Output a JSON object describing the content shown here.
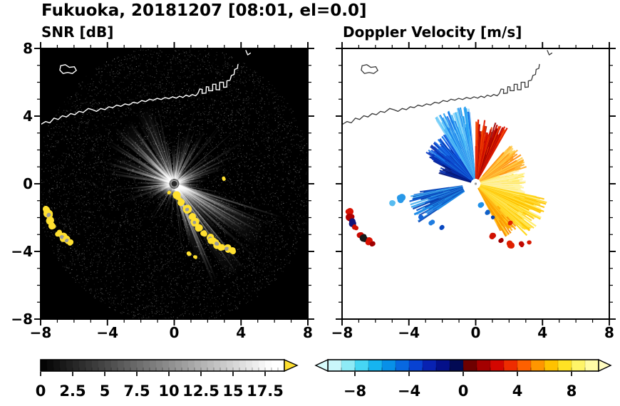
{
  "chart_data": {
    "type": "heatmap",
    "title": "Fukuoka, 20181207 [08:01, el=0.0]",
    "axes": {
      "xlim": [
        -8,
        8
      ],
      "ylim": [
        -8,
        8
      ],
      "major_ticks": [
        -8,
        -4,
        0,
        4,
        8
      ],
      "x_tick_labels": [
        "−8",
        "−4",
        "0",
        "4",
        "8"
      ],
      "y_tick_values": [
        8,
        4,
        0,
        -4,
        -8
      ],
      "y_tick_labels": [
        "8",
        "4",
        "0",
        "−4",
        "−8"
      ],
      "minor_step": 1
    },
    "panels": [
      {
        "subtitle": "SNR [dB]",
        "background": "#000000",
        "colorbar": {
          "min": 0,
          "max": 19,
          "step": 0.5,
          "style": "grayscale",
          "label_values": [
            0,
            2.5,
            5,
            7.5,
            10,
            12.5,
            15,
            17.5
          ],
          "labels": [
            "0",
            "2.5",
            "5",
            "7.5",
            "10",
            "12.5",
            "15",
            "17.5"
          ],
          "over_arrow_color": "#ffe030"
        },
        "speckle": {
          "seed": 11,
          "count": 7000,
          "max_radius": 8.3,
          "gray_min": 14,
          "gray_max": 78
        },
        "beams": {
          "seed": 23,
          "random_count": 130,
          "fans": [
            {
              "a0": -75,
              "a1": -14,
              "n": 28,
              "len_min": 3.2,
              "len_max": 6.8,
              "alpha_min": 0.25,
              "alpha_max": 0.7
            },
            {
              "a0": 100,
              "a1": 172,
              "n": 22,
              "len_min": 2.4,
              "len_max": 5.0,
              "alpha_min": 0.2,
              "alpha_max": 0.6
            },
            {
              "a0": 55,
              "a1": 95,
              "n": 10,
              "len_min": 1.8,
              "len_max": 3.3,
              "alpha_min": 0.2,
              "alpha_max": 0.55
            },
            {
              "a0": 175,
              "a1": 200,
              "n": 8,
              "len_min": 1.5,
              "len_max": 3.0,
              "alpha_min": 0.15,
              "alpha_max": 0.4
            },
            {
              "a0": 5,
              "a1": 40,
              "n": 8,
              "len_min": 1.5,
              "len_max": 3.2,
              "alpha_min": 0.15,
              "alpha_max": 0.45
            }
          ],
          "wedges": [
            {
              "ang": -32,
              "half": 6,
              "len": 6.2
            },
            {
              "ang": -55,
              "half": 5,
              "len": 6.6
            },
            {
              "ang": -70,
              "half": 4,
              "len": 5.2
            },
            {
              "ang": 133,
              "half": 8,
              "len": 4.6
            },
            {
              "ang": 113,
              "half": 5,
              "len": 4.9
            },
            {
              "ang": 158,
              "half": 5,
              "len": 3.8
            },
            {
              "ang": 75,
              "half": 4,
              "len": 3.1
            }
          ]
        },
        "echoes": {
          "color": "#ffe030",
          "core_color": "#9a9a9a",
          "blobs": [
            [
              0.15,
              -0.75,
              0.28,
              0
            ],
            [
              0.45,
              -1.05,
              0.26,
              0
            ],
            [
              0.8,
              -1.5,
              0.3,
              1
            ],
            [
              1.05,
              -1.95,
              0.28,
              0
            ],
            [
              1.2,
              -2.3,
              0.26,
              1
            ],
            [
              1.45,
              -2.6,
              0.28,
              0
            ],
            [
              1.8,
              -2.95,
              0.24,
              0
            ],
            [
              2.15,
              -3.25,
              0.3,
              1
            ],
            [
              2.3,
              -3.4,
              0.34,
              0
            ],
            [
              2.55,
              -3.55,
              0.3,
              1
            ],
            [
              2.85,
              -3.72,
              0.28,
              0
            ],
            [
              3.15,
              -3.85,
              0.26,
              1
            ],
            [
              3.45,
              -3.95,
              0.22,
              0
            ],
            [
              -7.65,
              -1.5,
              0.26,
              0
            ],
            [
              -7.55,
              -1.85,
              0.3,
              1
            ],
            [
              -7.4,
              -2.2,
              0.28,
              0
            ],
            [
              -7.25,
              -2.5,
              0.24,
              0
            ],
            [
              -6.95,
              -2.95,
              0.26,
              0
            ],
            [
              -6.7,
              -3.15,
              0.3,
              1
            ],
            [
              -6.45,
              -3.35,
              0.28,
              1
            ],
            [
              -6.2,
              -3.5,
              0.22,
              0
            ],
            [
              2.95,
              0.3,
              0.13,
              0
            ],
            [
              -0.3,
              -0.5,
              0.11,
              0
            ],
            [
              0.9,
              -4.15,
              0.14,
              0
            ],
            [
              1.25,
              -4.35,
              0.13,
              0
            ]
          ]
        }
      },
      {
        "subtitle": "Doppler Velocity [m/s]",
        "background": "#ffffff",
        "seed": 5,
        "colorbar": {
          "min": -10,
          "max": 10,
          "step": 1,
          "label_values": [
            -8,
            -4,
            0,
            4,
            8
          ],
          "labels": [
            "−8",
            "−4",
            "0",
            "4",
            "8"
          ],
          "colors": [
            "#caf6fa",
            "#8eeaf6",
            "#46d6f4",
            "#16b4f0",
            "#0890e8",
            "#0868e0",
            "#0842d2",
            "#0822b2",
            "#04108a",
            "#020a54",
            "#6e0000",
            "#a40000",
            "#d40600",
            "#ee2c00",
            "#fe6000",
            "#ff9600",
            "#ffc200",
            "#ffe224",
            "#fef468",
            "#fffca6"
          ],
          "under_arrow_color": "#d8fcfc",
          "over_arrow_color": "#fffcc0"
        },
        "fans": [
          {
            "name": "upper-left-cyan",
            "a0": 95,
            "a1": 122,
            "r0": 0.3,
            "r1": 4.6,
            "n": 85,
            "colors": [
              "#58c4f8",
              "#28a0f0",
              "#1070e8",
              "#88d4f8",
              "#40b0f0"
            ]
          },
          {
            "name": "left-blue",
            "a0": 122,
            "a1": 152,
            "r0": 0.3,
            "r1": 3.5,
            "n": 70,
            "colors": [
              "#1058e0",
              "#0838c0",
              "#1878e8",
              "#0828a0"
            ]
          },
          {
            "name": "left-dark",
            "a0": 150,
            "a1": 164,
            "r0": 0.3,
            "r1": 2.3,
            "n": 18,
            "colors": [
              "#0830b0",
              "#061878"
            ]
          },
          {
            "name": "top-red",
            "a0": 60,
            "a1": 90,
            "r0": 0.3,
            "r1": 3.8,
            "n": 70,
            "colors": [
              "#e01800",
              "#c00800",
              "#f04000",
              "#980000"
            ]
          },
          {
            "name": "ne-orange",
            "a0": 18,
            "a1": 48,
            "r0": 0.3,
            "r1": 3.2,
            "n": 60,
            "colors": [
              "#ffb028",
              "#ff9010",
              "#ffd050"
            ]
          },
          {
            "name": "east-pale",
            "a0": -12,
            "a1": 18,
            "r0": 0.3,
            "r1": 3.0,
            "n": 70,
            "colors": [
              "#fff49a",
              "#ffe860",
              "#fdf2c0"
            ]
          },
          {
            "name": "se-yellow",
            "a0": -45,
            "a1": -12,
            "r0": 0.3,
            "r1": 4.4,
            "n": 95,
            "colors": [
              "#ffd820",
              "#ffc400",
              "#ffee70"
            ]
          },
          {
            "name": "sse-orange",
            "a0": -62,
            "a1": -45,
            "r0": 0.3,
            "r1": 3.6,
            "n": 45,
            "colors": [
              "#ffd830",
              "#ffaa00",
              "#f89000"
            ]
          },
          {
            "name": "wsw-blue",
            "a0": 188,
            "a1": 214,
            "r0": 0.8,
            "r1": 4.1,
            "n": 60,
            "colors": [
              "#1e8ce8",
              "#0e5cd0",
              "#48b0f0",
              "#0840b0"
            ]
          }
        ],
        "blobs": [
          [
            -4.45,
            -0.9,
            0.26,
            "#2898e8"
          ],
          [
            -4.95,
            -1.15,
            0.22,
            "#58bcf0"
          ],
          [
            -3.3,
            -2.0,
            0.18,
            "#1464d8"
          ],
          [
            -2.65,
            -2.3,
            0.2,
            "#1e7ce0"
          ],
          [
            -2.05,
            -2.6,
            0.16,
            "#0848c0"
          ],
          [
            0.35,
            -1.25,
            0.18,
            "#2090e8"
          ],
          [
            0.7,
            -1.7,
            0.16,
            "#1060c8"
          ],
          [
            1.05,
            -2.0,
            0.13,
            "#0840a8"
          ],
          [
            1.05,
            -3.05,
            0.2,
            "#d01000"
          ],
          [
            1.5,
            -3.35,
            0.18,
            "#a00000"
          ],
          [
            2.1,
            -3.6,
            0.22,
            "#e02000"
          ],
          [
            2.75,
            -3.6,
            0.18,
            "#c00800"
          ],
          [
            3.2,
            -3.5,
            0.16,
            "#d81800"
          ],
          [
            2.05,
            -2.3,
            0.16,
            "#e02800"
          ],
          [
            -7.6,
            -1.6,
            0.24,
            "#d81000"
          ],
          [
            -7.5,
            -1.95,
            0.26,
            "#b00000"
          ],
          [
            -7.35,
            -2.3,
            0.24,
            "#141478"
          ],
          [
            -7.2,
            -2.55,
            0.2,
            "#d01000"
          ],
          [
            -6.9,
            -3.0,
            0.24,
            "#c80800"
          ],
          [
            -6.65,
            -3.2,
            0.26,
            "#181818"
          ],
          [
            -6.4,
            -3.4,
            0.24,
            "#d81000"
          ],
          [
            -6.15,
            -3.55,
            0.18,
            "#a00000"
          ]
        ]
      }
    ],
    "map_outline": {
      "coast": [
        [
          [
            -8,
            3.5
          ],
          [
            -7.7,
            3.68
          ],
          [
            -7.45,
            3.6
          ],
          [
            -7.2,
            3.88
          ],
          [
            -6.95,
            3.8
          ],
          [
            -6.7,
            4.02
          ],
          [
            -6.45,
            3.95
          ],
          [
            -6.2,
            4.15
          ],
          [
            -5.95,
            4.08
          ],
          [
            -5.7,
            4.28
          ],
          [
            -5.45,
            4.22
          ],
          [
            -5.15,
            4.45
          ],
          [
            -4.9,
            4.38
          ],
          [
            -4.65,
            4.28
          ],
          [
            -4.4,
            4.45
          ],
          [
            -4.15,
            4.38
          ],
          [
            -3.92,
            4.55
          ],
          [
            -3.68,
            4.5
          ],
          [
            -3.45,
            4.65
          ],
          [
            -3.2,
            4.58
          ],
          [
            -2.95,
            4.72
          ],
          [
            -2.7,
            4.66
          ],
          [
            -2.45,
            4.82
          ],
          [
            -2.2,
            4.76
          ],
          [
            -1.95,
            4.92
          ],
          [
            -1.7,
            4.86
          ],
          [
            -1.48,
            5.0
          ],
          [
            -1.25,
            4.94
          ],
          [
            -1.02,
            5.05
          ],
          [
            -0.78,
            4.98
          ],
          [
            -0.55,
            5.1
          ],
          [
            -0.32,
            5.03
          ],
          [
            -0.1,
            5.14
          ],
          [
            0.12,
            5.06
          ],
          [
            0.32,
            5.18
          ],
          [
            0.52,
            5.1
          ],
          [
            0.7,
            5.24
          ],
          [
            0.9,
            5.16
          ],
          [
            1.08,
            5.28
          ],
          [
            1.28,
            5.2
          ],
          [
            1.42,
            5.34
          ]
        ],
        [
          [
            1.42,
            5.34
          ],
          [
            1.52,
            5.6
          ],
          [
            1.68,
            5.58
          ],
          [
            1.66,
            5.34
          ],
          [
            1.9,
            5.36
          ],
          [
            1.92,
            5.74
          ],
          [
            2.06,
            5.72
          ],
          [
            2.06,
            5.5
          ],
          [
            2.3,
            5.5
          ],
          [
            2.3,
            5.88
          ],
          [
            2.5,
            5.88
          ],
          [
            2.5,
            5.56
          ],
          [
            2.72,
            5.56
          ],
          [
            2.72,
            6.0
          ],
          [
            2.95,
            6.0
          ],
          [
            2.95,
            5.7
          ],
          [
            3.15,
            5.72
          ],
          [
            3.15,
            6.08
          ],
          [
            3.34,
            6.12
          ]
        ],
        [
          [
            3.34,
            6.12
          ],
          [
            3.42,
            6.4
          ],
          [
            3.58,
            6.46
          ],
          [
            3.62,
            6.76
          ],
          [
            3.78,
            6.82
          ],
          [
            3.82,
            7.08
          ]
        ],
        [
          [
            4.28,
            7.9
          ],
          [
            4.4,
            7.62
          ],
          [
            4.58,
            7.74
          ]
        ]
      ],
      "island": [
        [
          -6.85,
          6.72
        ],
        [
          -6.66,
          6.52
        ],
        [
          -6.38,
          6.58
        ],
        [
          -6.1,
          6.52
        ],
        [
          -5.86,
          6.7
        ],
        [
          -5.98,
          6.92
        ],
        [
          -6.28,
          6.88
        ],
        [
          -6.52,
          7.04
        ],
        [
          -6.8,
          6.98
        ]
      ]
    }
  }
}
